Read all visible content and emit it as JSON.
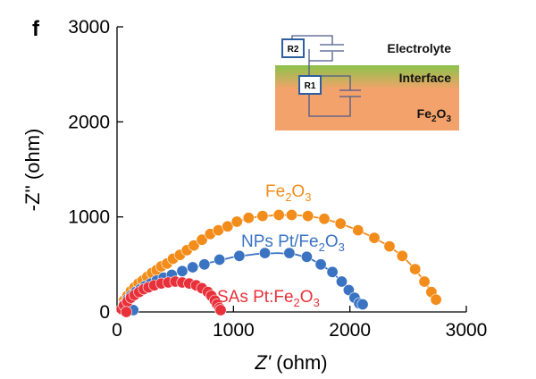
{
  "panel_label": "f",
  "chart_data": {
    "type": "scatter",
    "title": "",
    "xlabel": {
      "italic": "Z'",
      "rest": " (ohm)"
    },
    "ylabel": "-Z'' (ohm)",
    "xlim": [
      0,
      3000
    ],
    "ylim": [
      0,
      3000
    ],
    "xticks": [
      "0",
      "1000",
      "2000",
      "3000"
    ],
    "yticks": [
      "0",
      "1000",
      "2000",
      "3000"
    ],
    "series": [
      {
        "name": "Fe2O3",
        "label": {
          "base": "Fe",
          "sub1": "2",
          "mid": "O",
          "sub2": "3"
        },
        "color": "#F28C1A",
        "points": [
          [
            60,
            120
          ],
          [
            90,
            170
          ],
          [
            120,
            220
          ],
          [
            150,
            260
          ],
          [
            185,
            300
          ],
          [
            220,
            330
          ],
          [
            260,
            370
          ],
          [
            300,
            410
          ],
          [
            340,
            440
          ],
          [
            380,
            480
          ],
          [
            430,
            510
          ],
          [
            480,
            560
          ],
          [
            540,
            600
          ],
          [
            600,
            650
          ],
          [
            660,
            700
          ],
          [
            730,
            760
          ],
          [
            800,
            820
          ],
          [
            870,
            860
          ],
          [
            950,
            900
          ],
          [
            1030,
            950
          ],
          [
            1130,
            990
          ],
          [
            1250,
            1010
          ],
          [
            1390,
            1020
          ],
          [
            1500,
            1020
          ],
          [
            1640,
            1010
          ],
          [
            1780,
            980
          ],
          [
            1920,
            930
          ],
          [
            2070,
            860
          ],
          [
            2210,
            780
          ],
          [
            2340,
            690
          ],
          [
            2450,
            590
          ],
          [
            2560,
            450
          ],
          [
            2640,
            320
          ],
          [
            2700,
            210
          ],
          [
            2740,
            130
          ]
        ],
        "curve_x": [
          30,
          60,
          120,
          200,
          300,
          420,
          560,
          720,
          880,
          1040,
          1200,
          1360,
          1500,
          1640,
          1780,
          1920,
          2060,
          2200,
          2330,
          2450,
          2560,
          2650,
          2710,
          2745
        ]
      },
      {
        "name": "NPs Pt/Fe2O3",
        "label": {
          "prefix": "NPs Pt/",
          "base": "Fe",
          "sub1": "2",
          "mid": "O",
          "sub2": "3"
        },
        "color": "#3A73C2",
        "points": [
          [
            60,
            80
          ],
          [
            90,
            130
          ],
          [
            120,
            170
          ],
          [
            160,
            210
          ],
          [
            200,
            240
          ],
          [
            240,
            270
          ],
          [
            290,
            300
          ],
          [
            340,
            330
          ],
          [
            400,
            360
          ],
          [
            470,
            390
          ],
          [
            560,
            430
          ],
          [
            650,
            470
          ],
          [
            750,
            500
          ],
          [
            880,
            550
          ],
          [
            1050,
            590
          ],
          [
            1270,
            620
          ],
          [
            1480,
            620
          ],
          [
            1630,
            580
          ],
          [
            1750,
            500
          ],
          [
            1850,
            420
          ],
          [
            1930,
            320
          ],
          [
            1990,
            230
          ],
          [
            2040,
            150
          ],
          [
            2080,
            90
          ],
          [
            2110,
            80
          ],
          [
            140,
            20
          ]
        ],
        "curve_x": [
          30,
          100,
          200,
          320,
          460,
          620,
          800,
          1000,
          1200,
          1380,
          1520,
          1650,
          1760,
          1860,
          1950,
          2020,
          2070,
          2105
        ]
      },
      {
        "name": "SAs Pt:Fe2O3",
        "label": {
          "prefix": "SAs Pt:",
          "base": "Fe",
          "sub1": "2",
          "mid": "O",
          "sub2": "3"
        },
        "color": "#E8313A",
        "points": [
          [
            40,
            30
          ],
          [
            60,
            70
          ],
          [
            90,
            110
          ],
          [
            120,
            150
          ],
          [
            150,
            180
          ],
          [
            190,
            210
          ],
          [
            230,
            240
          ],
          [
            270,
            260
          ],
          [
            320,
            280
          ],
          [
            380,
            300
          ],
          [
            440,
            310
          ],
          [
            500,
            320
          ],
          [
            560,
            310
          ],
          [
            620,
            300
          ],
          [
            680,
            280
          ],
          [
            730,
            250
          ],
          [
            780,
            210
          ],
          [
            810,
            170
          ],
          [
            840,
            120
          ],
          [
            860,
            80
          ],
          [
            880,
            40
          ],
          [
            890,
            20
          ],
          [
            80,
            0
          ]
        ],
        "curve_x": [
          30,
          80,
          150,
          230,
          320,
          420,
          520,
          620,
          700,
          770,
          820,
          860,
          885,
          895
        ]
      }
    ],
    "inset": {
      "layers": [
        "Electrolyte",
        "Interface",
        {
          "base": "Fe",
          "sub1": "2",
          "mid": "O",
          "sub2": "3"
        }
      ],
      "resistors": [
        "R2",
        "R1"
      ],
      "colors": {
        "interface_top": "#8BC34A",
        "interface_bottom": "#F4A26B",
        "substrate": "#F4A26B",
        "wire": "#4A5A8A",
        "box": "#2E5E9E"
      }
    }
  }
}
